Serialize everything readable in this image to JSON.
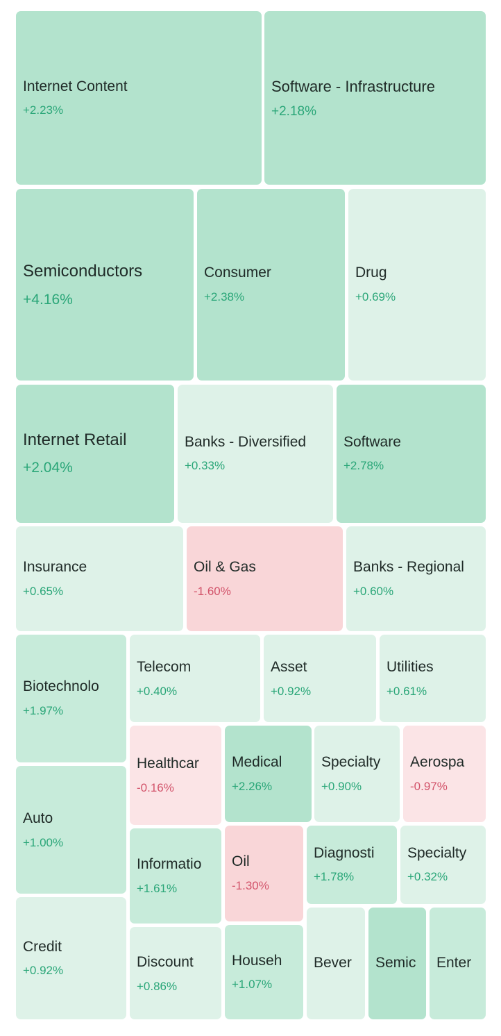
{
  "colors": {
    "strong_green": "#b3e3cd",
    "medium_green": "#c7ebda",
    "light_green": "#def2e8",
    "strong_red": "#f9d6d8",
    "light_red": "#fbe4e6",
    "positive_text": "#2aa678",
    "negative_text": "#d2536a"
  },
  "tiles": [
    {
      "name": "Internet Content",
      "change": "+2.23%"
    },
    {
      "name": "Software - Infrastructure",
      "change": "+2.18%"
    },
    {
      "name": "Semiconductors",
      "change": "+4.16%"
    },
    {
      "name": "Consumer",
      "change": "+2.38%"
    },
    {
      "name": "Drug",
      "change": "+0.69%"
    },
    {
      "name": "Internet Retail",
      "change": "+2.04%"
    },
    {
      "name": "Banks - Diversified",
      "change": "+0.33%"
    },
    {
      "name": "Software",
      "change": "+2.78%"
    },
    {
      "name": "Insurance",
      "change": "+0.65%"
    },
    {
      "name": "Oil & Gas",
      "change": "-1.60%"
    },
    {
      "name": "Banks - Regional",
      "change": "+0.60%"
    },
    {
      "name": "Biotechnolo",
      "change": "+1.97%"
    },
    {
      "name": "Telecom",
      "change": "+0.40%"
    },
    {
      "name": "Asset",
      "change": "+0.92%"
    },
    {
      "name": "Utilities",
      "change": "+0.61%"
    },
    {
      "name": "Healthcar",
      "change": "-0.16%"
    },
    {
      "name": "Medical",
      "change": "+2.26%"
    },
    {
      "name": "Specialty",
      "change": "+0.90%"
    },
    {
      "name": "Aerospa",
      "change": "-0.97%"
    },
    {
      "name": "Auto",
      "change": "+1.00%"
    },
    {
      "name": "Informatio",
      "change": "+1.61%"
    },
    {
      "name": "Oil",
      "change": "-1.30%"
    },
    {
      "name": "Diagnosti",
      "change": "+1.78%"
    },
    {
      "name": "Specialty",
      "change": "+0.32%"
    },
    {
      "name": "Credit",
      "change": "+0.92%"
    },
    {
      "name": "Discount",
      "change": "+0.86%"
    },
    {
      "name": "Househ",
      "change": "+1.07%"
    },
    {
      "name": "Bever",
      "change": ""
    },
    {
      "name": "Semic",
      "change": ""
    },
    {
      "name": "Enter",
      "change": ""
    }
  ]
}
